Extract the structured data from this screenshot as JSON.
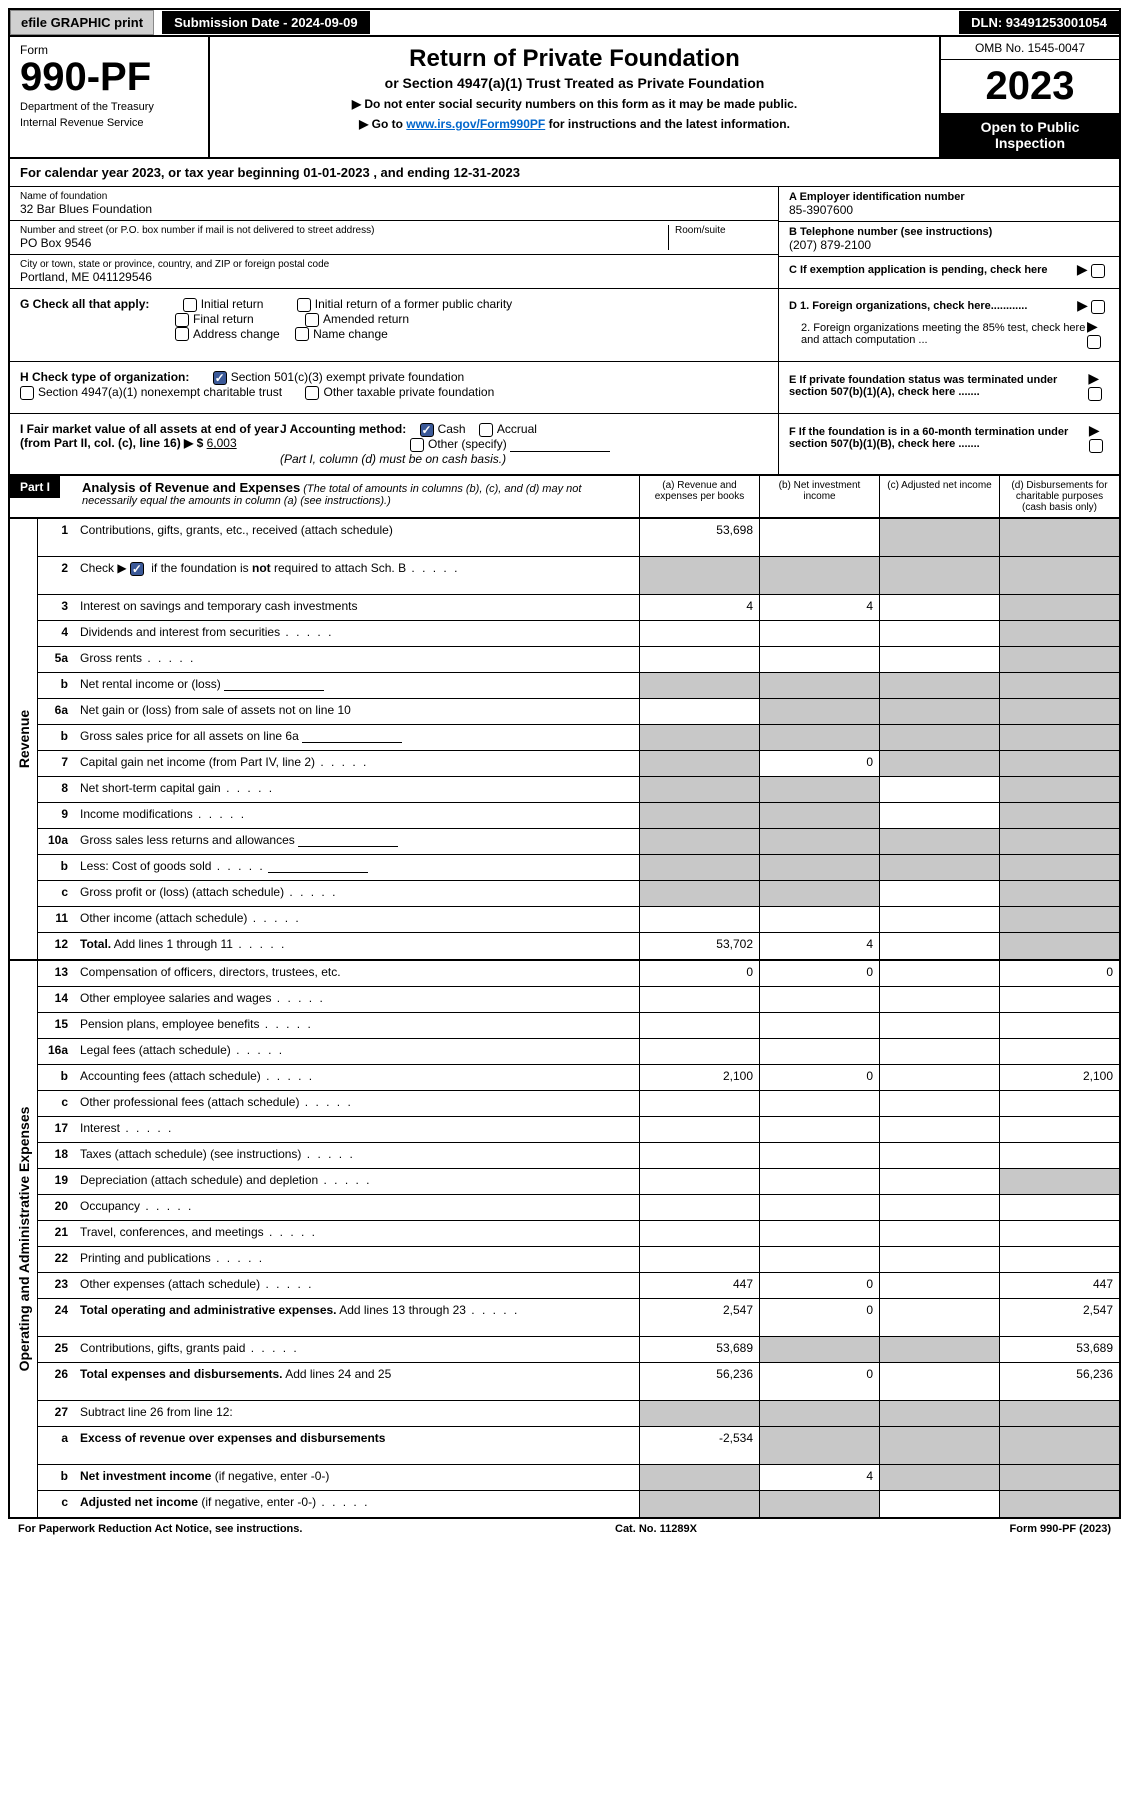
{
  "topBar": {
    "efile": "efile GRAPHIC print",
    "submission": "Submission Date - 2024-09-09",
    "dln": "DLN: 93491253001054"
  },
  "header": {
    "formLabel": "Form",
    "formNumber": "990-PF",
    "dept1": "Department of the Treasury",
    "dept2": "Internal Revenue Service",
    "title": "Return of Private Foundation",
    "subtitle": "or Section 4947(a)(1) Trust Treated as Private Foundation",
    "instr1": "▶ Do not enter social security numbers on this form as it may be made public.",
    "instr2a": "▶ Go to ",
    "instr2link": "www.irs.gov/Form990PF",
    "instr2b": " for instructions and the latest information.",
    "omb": "OMB No. 1545-0047",
    "year": "2023",
    "openPublic": "Open to Public Inspection"
  },
  "calendarYear": "For calendar year 2023, or tax year beginning 01-01-2023             , and ending 12-31-2023",
  "info": {
    "nameLabel": "Name of foundation",
    "name": "32 Bar Blues Foundation",
    "einLabel": "A Employer identification number",
    "ein": "85-3907600",
    "streetLabel": "Number and street (or P.O. box number if mail is not delivered to street address)",
    "roomLabel": "Room/suite",
    "street": "PO Box 9546",
    "phoneLabel": "B Telephone number (see instructions)",
    "phone": "(207) 879-2100",
    "cityLabel": "City or town, state or province, country, and ZIP or foreign postal code",
    "city": "Portland, ME  041129546",
    "cLabel": "C If exemption application is pending, check here"
  },
  "checks": {
    "gLabel": "G Check all that apply:",
    "g1": "Initial return",
    "g2": "Final return",
    "g3": "Address change",
    "g4": "Initial return of a former public charity",
    "g5": "Amended return",
    "g6": "Name change",
    "hLabel": "H Check type of organization:",
    "h1": "Section 501(c)(3) exempt private foundation",
    "h2": "Section 4947(a)(1) nonexempt charitable trust",
    "h3": "Other taxable private foundation",
    "iLabel": "I Fair market value of all assets at end of year (from Part II, col. (c), line 16) ▶ $",
    "iValue": "6,003",
    "jLabel": "J Accounting method:",
    "j1": "Cash",
    "j2": "Accrual",
    "j3": "Other (specify)",
    "jNote": "(Part I, column (d) must be on cash basis.)",
    "d1": "D 1. Foreign organizations, check here............",
    "d2": "2. Foreign organizations meeting the 85% test, check here and attach computation ...",
    "eLabel": "E  If private foundation status was terminated under section 507(b)(1)(A), check here .......",
    "fLabel": "F  If the foundation is in a 60-month termination under section 507(b)(1)(B), check here .......",
    "arrow": "▶"
  },
  "partI": {
    "label": "Part I",
    "title": "Analysis of Revenue and Expenses",
    "desc": "(The total of amounts in columns (b), (c), and (d) may not necessarily equal the amounts in column (a) (see instructions).)",
    "colA": "(a)   Revenue and expenses per books",
    "colB": "(b)   Net investment income",
    "colC": "(c)   Adjusted net income",
    "colD": "(d)   Disbursements for charitable purposes (cash basis only)"
  },
  "sideLabels": {
    "revenue": "Revenue",
    "expenses": "Operating and Administrative Expenses"
  },
  "rows": [
    {
      "n": "1",
      "d": "Contributions, gifts, grants, etc., received (attach schedule)",
      "a": "53,698",
      "b": "",
      "c": "g",
      "dcol": "g",
      "tall": true
    },
    {
      "n": "2",
      "d": "Check ▶ ☑ if the foundation is **not** required to attach Sch. B",
      "a": "g",
      "b": "g",
      "c": "g",
      "dcol": "g",
      "tall": true,
      "dots": true
    },
    {
      "n": "3",
      "d": "Interest on savings and temporary cash investments",
      "a": "4",
      "b": "4",
      "c": "",
      "dcol": "g"
    },
    {
      "n": "4",
      "d": "Dividends and interest from securities",
      "a": "",
      "b": "",
      "c": "",
      "dcol": "g",
      "dots": true
    },
    {
      "n": "5a",
      "d": "Gross rents",
      "a": "",
      "b": "",
      "c": "",
      "dcol": "g",
      "dots": true
    },
    {
      "n": "b",
      "d": "Net rental income or (loss)",
      "a": "g",
      "b": "g",
      "c": "g",
      "dcol": "g",
      "inline": true
    },
    {
      "n": "6a",
      "d": "Net gain or (loss) from sale of assets not on line 10",
      "a": "",
      "b": "g",
      "c": "g",
      "dcol": "g"
    },
    {
      "n": "b",
      "d": "Gross sales price for all assets on line 6a",
      "a": "g",
      "b": "g",
      "c": "g",
      "dcol": "g",
      "inline": true
    },
    {
      "n": "7",
      "d": "Capital gain net income (from Part IV, line 2)",
      "a": "g",
      "b": "0",
      "c": "g",
      "dcol": "g",
      "dots": true
    },
    {
      "n": "8",
      "d": "Net short-term capital gain",
      "a": "g",
      "b": "g",
      "c": "",
      "dcol": "g",
      "dots": true
    },
    {
      "n": "9",
      "d": "Income modifications",
      "a": "g",
      "b": "g",
      "c": "",
      "dcol": "g",
      "dots": true
    },
    {
      "n": "10a",
      "d": "Gross sales less returns and allowances",
      "a": "g",
      "b": "g",
      "c": "g",
      "dcol": "g",
      "inline": true
    },
    {
      "n": "b",
      "d": "Less: Cost of goods sold",
      "a": "g",
      "b": "g",
      "c": "g",
      "dcol": "g",
      "inline": true,
      "dots": true
    },
    {
      "n": "c",
      "d": "Gross profit or (loss) (attach schedule)",
      "a": "g",
      "b": "g",
      "c": "",
      "dcol": "g",
      "dots": true
    },
    {
      "n": "11",
      "d": "Other income (attach schedule)",
      "a": "",
      "b": "",
      "c": "",
      "dcol": "g",
      "dots": true
    },
    {
      "n": "12",
      "d": "**Total.** Add lines 1 through 11",
      "a": "53,702",
      "b": "4",
      "c": "",
      "dcol": "g",
      "dots": true
    }
  ],
  "expRows": [
    {
      "n": "13",
      "d": "Compensation of officers, directors, trustees, etc.",
      "a": "0",
      "b": "0",
      "c": "",
      "dcol": "0"
    },
    {
      "n": "14",
      "d": "Other employee salaries and wages",
      "a": "",
      "b": "",
      "c": "",
      "dcol": "",
      "dots": true
    },
    {
      "n": "15",
      "d": "Pension plans, employee benefits",
      "a": "",
      "b": "",
      "c": "",
      "dcol": "",
      "dots": true
    },
    {
      "n": "16a",
      "d": "Legal fees (attach schedule)",
      "a": "",
      "b": "",
      "c": "",
      "dcol": "",
      "dots": true
    },
    {
      "n": "b",
      "d": "Accounting fees (attach schedule)",
      "a": "2,100",
      "b": "0",
      "c": "",
      "dcol": "2,100",
      "dots": true
    },
    {
      "n": "c",
      "d": "Other professional fees (attach schedule)",
      "a": "",
      "b": "",
      "c": "",
      "dcol": "",
      "dots": true
    },
    {
      "n": "17",
      "d": "Interest",
      "a": "",
      "b": "",
      "c": "",
      "dcol": "",
      "dots": true
    },
    {
      "n": "18",
      "d": "Taxes (attach schedule) (see instructions)",
      "a": "",
      "b": "",
      "c": "",
      "dcol": "",
      "dots": true
    },
    {
      "n": "19",
      "d": "Depreciation (attach schedule) and depletion",
      "a": "",
      "b": "",
      "c": "",
      "dcol": "g",
      "dots": true
    },
    {
      "n": "20",
      "d": "Occupancy",
      "a": "",
      "b": "",
      "c": "",
      "dcol": "",
      "dots": true
    },
    {
      "n": "21",
      "d": "Travel, conferences, and meetings",
      "a": "",
      "b": "",
      "c": "",
      "dcol": "",
      "dots": true
    },
    {
      "n": "22",
      "d": "Printing and publications",
      "a": "",
      "b": "",
      "c": "",
      "dcol": "",
      "dots": true
    },
    {
      "n": "23",
      "d": "Other expenses (attach schedule)",
      "a": "447",
      "b": "0",
      "c": "",
      "dcol": "447",
      "dots": true
    },
    {
      "n": "24",
      "d": "**Total operating and administrative expenses.** Add lines 13 through 23",
      "a": "2,547",
      "b": "0",
      "c": "",
      "dcol": "2,547",
      "tall": true,
      "dots": true
    },
    {
      "n": "25",
      "d": "Contributions, gifts, grants paid",
      "a": "53,689",
      "b": "g",
      "c": "g",
      "dcol": "53,689",
      "dots": true
    },
    {
      "n": "26",
      "d": "**Total expenses and disbursements.** Add lines 24 and 25",
      "a": "56,236",
      "b": "0",
      "c": "",
      "dcol": "56,236",
      "tall": true
    },
    {
      "n": "27",
      "d": "Subtract line 26 from line 12:",
      "a": "g",
      "b": "g",
      "c": "g",
      "dcol": "g"
    },
    {
      "n": "a",
      "d": "**Excess of revenue over expenses and disbursements**",
      "a": "-2,534",
      "b": "g",
      "c": "g",
      "dcol": "g",
      "tall": true
    },
    {
      "n": "b",
      "d": "**Net investment income** (if negative, enter -0-)",
      "a": "g",
      "b": "4",
      "c": "g",
      "dcol": "g"
    },
    {
      "n": "c",
      "d": "**Adjusted net income** (if negative, enter -0-)",
      "a": "g",
      "b": "g",
      "c": "",
      "dcol": "g",
      "dots": true
    }
  ],
  "footer": {
    "left": "For Paperwork Reduction Act Notice, see instructions.",
    "center": "Cat. No. 11289X",
    "right": "Form 990-PF (2023)"
  }
}
